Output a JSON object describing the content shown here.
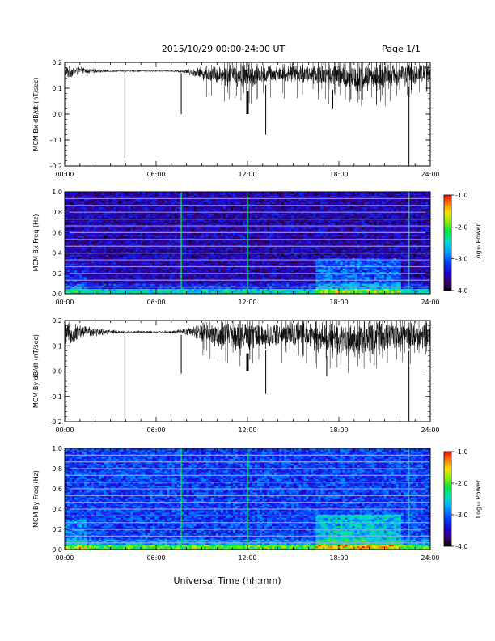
{
  "header": {
    "title": "2015/10/29  00:00-24:00 UT",
    "page": "Page 1/1"
  },
  "footer": {
    "xlabel": "Universal Time (hh:mm)"
  },
  "chart_data": [
    {
      "type": "line",
      "ylabel": "MCM Bx dB/dt (nT/sec)",
      "xlim": [
        0,
        24
      ],
      "ylim": [
        -0.2,
        0.2
      ],
      "xticks": [
        "00:00",
        "06:00",
        "12:00",
        "18:00",
        "24:00"
      ],
      "yticks": [
        "-0.2",
        "-0.1",
        "0.0",
        "0.1",
        "0.2"
      ],
      "series": [
        {
          "x": [
            0,
            1,
            2,
            3,
            4,
            5,
            6,
            7,
            7.5,
            8,
            9,
            10,
            11,
            12,
            13,
            14,
            15,
            16,
            17,
            18,
            19,
            20,
            21,
            22,
            23,
            24
          ],
          "upper": [
            0.19,
            0.185,
            0.175,
            0.17,
            0.17,
            0.17,
            0.17,
            0.17,
            0.172,
            0.175,
            0.185,
            0.195,
            0.2,
            0.2,
            0.19,
            0.19,
            0.2,
            0.2,
            0.2,
            0.2,
            0.2,
            0.2,
            0.2,
            0.2,
            0.2,
            0.2
          ],
          "lower": [
            0.13,
            0.15,
            0.158,
            0.162,
            0.163,
            0.163,
            0.163,
            0.163,
            0.16,
            0.155,
            0.13,
            0.11,
            0.1,
            0.09,
            0.11,
            0.12,
            0.12,
            0.11,
            0.1,
            0.09,
            0.08,
            0.08,
            0.09,
            0.1,
            0.11,
            0.12
          ],
          "spikes": [
            {
              "t": 3.95,
              "v": -0.17
            },
            {
              "t": 7.65,
              "v": 0.0
            },
            {
              "t": 12.0,
              "v": 0.0
            },
            {
              "t": 13.2,
              "v": -0.08
            },
            {
              "t": 17.6,
              "v": 0.02
            },
            {
              "t": 22.6,
              "v": -0.2
            }
          ]
        }
      ]
    },
    {
      "type": "heatmap",
      "ylabel": "MCM Bx Freq (Hz)",
      "xlim": [
        0,
        24
      ],
      "ylim": [
        0,
        1.0
      ],
      "xticks": [
        "00:00",
        "06:00",
        "12:00",
        "18:00",
        "24:00"
      ],
      "yticks": [
        "0.0",
        "0.2",
        "0.4",
        "0.6",
        "0.8",
        "1.0"
      ],
      "colorbar": {
        "label": "Log₁₀ Power",
        "range": [
          -4.0,
          -1.0
        ],
        "ticks": [
          "-1.0",
          "-2.0",
          "-3.0",
          "-4.0"
        ]
      },
      "base_power": -3.55,
      "harmonic_lines_hz": [
        0.066,
        0.133,
        0.2,
        0.266,
        0.333,
        0.4,
        0.466,
        0.533,
        0.6,
        0.666,
        0.733,
        0.8,
        0.866,
        0.933,
        1.0
      ],
      "vertical_lines_h": [
        7.65,
        12.0,
        22.6
      ],
      "active_region": {
        "t_start": 16.5,
        "t_end": 22.0,
        "f_max": 0.35
      }
    },
    {
      "type": "line",
      "ylabel": "MCM By dB/dt (nT/sec)",
      "xlim": [
        0,
        24
      ],
      "ylim": [
        -0.2,
        0.2
      ],
      "xticks": [
        "00:00",
        "06:00",
        "12:00",
        "18:00",
        "24:00"
      ],
      "yticks": [
        "-0.2",
        "-0.1",
        "0.0",
        "0.1",
        "0.2"
      ],
      "series": [
        {
          "x": [
            0,
            1,
            2,
            3,
            4,
            5,
            6,
            7,
            7.5,
            8,
            9,
            10,
            11,
            12,
            13,
            14,
            15,
            16,
            17,
            18,
            19,
            20,
            21,
            22,
            23,
            24
          ],
          "upper": [
            0.2,
            0.19,
            0.175,
            0.165,
            0.16,
            0.16,
            0.16,
            0.16,
            0.165,
            0.17,
            0.19,
            0.2,
            0.2,
            0.2,
            0.2,
            0.2,
            0.2,
            0.2,
            0.2,
            0.2,
            0.2,
            0.2,
            0.2,
            0.2,
            0.2,
            0.2
          ],
          "lower": [
            0.08,
            0.12,
            0.135,
            0.145,
            0.148,
            0.148,
            0.148,
            0.148,
            0.145,
            0.14,
            0.11,
            0.09,
            0.08,
            0.07,
            0.08,
            0.09,
            0.1,
            0.08,
            0.06,
            0.05,
            0.05,
            0.06,
            0.07,
            0.08,
            0.08,
            0.09
          ],
          "spikes": [
            {
              "t": 3.95,
              "v": -0.2
            },
            {
              "t": 7.65,
              "v": -0.01
            },
            {
              "t": 12.0,
              "v": 0.0
            },
            {
              "t": 13.2,
              "v": -0.09
            },
            {
              "t": 17.2,
              "v": -0.02
            },
            {
              "t": 22.6,
              "v": -0.2
            }
          ]
        }
      ]
    },
    {
      "type": "heatmap",
      "ylabel": "MCM By Freq (Hz)",
      "xlim": [
        0,
        24
      ],
      "ylim": [
        0,
        1.0
      ],
      "xticks": [
        "00:00",
        "06:00",
        "12:00",
        "18:00",
        "24:00"
      ],
      "yticks": [
        "0.0",
        "0.2",
        "0.4",
        "0.6",
        "0.8",
        "1.0"
      ],
      "colorbar": {
        "label": "Log₁₀ Power",
        "range": [
          -4.0,
          -1.0
        ],
        "ticks": [
          "-1.0",
          "-2.0",
          "-3.0",
          "-4.0"
        ]
      },
      "base_power": -3.15,
      "harmonic_lines_hz": [
        0.066,
        0.133,
        0.2,
        0.266,
        0.333,
        0.4,
        0.466,
        0.533,
        0.6,
        0.666,
        0.733,
        0.8,
        0.866,
        0.933,
        1.0
      ],
      "vertical_lines_h": [
        7.65,
        12.0,
        22.6
      ],
      "active_region": {
        "t_start": 16.5,
        "t_end": 22.0,
        "f_max": 0.35
      }
    }
  ]
}
